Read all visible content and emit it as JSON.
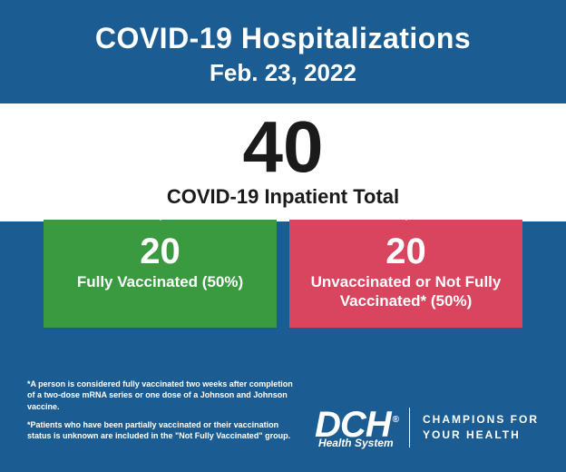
{
  "colors": {
    "card_bg": "#1b5c92",
    "total_bar_bg": "#ffffff",
    "total_text": "#1a1a1a",
    "stat_left_bg": "#3a9a3f",
    "stat_right_bg": "#d9455e",
    "pointer_color": "#ffffff"
  },
  "header": {
    "title": "COVID-19 Hospitalizations",
    "date": "Feb. 23, 2022"
  },
  "total": {
    "value": "40",
    "label": "COVID-19 Inpatient Total"
  },
  "stats": {
    "left": {
      "value": "20",
      "label": "Fully Vaccinated (50%)"
    },
    "right": {
      "value": "20",
      "label": "Unvaccinated or Not Fully Vaccinated* (50%)"
    }
  },
  "fineprint": {
    "p1": "*A person is considered fully vaccinated two weeks after completion of a two-dose mRNA series or one dose of a Johnson and Johnson vaccine.",
    "p2": "*Patients who have been partially vaccinated or their vaccination status is unknown are included in the \"Not Fully Vaccinated\" group."
  },
  "brand": {
    "logo_main": "DCH",
    "logo_reg": "®",
    "logo_sub": "Health System",
    "tagline_l1": "CHAMPIONS FOR",
    "tagline_l2": "YOUR HEALTH"
  }
}
